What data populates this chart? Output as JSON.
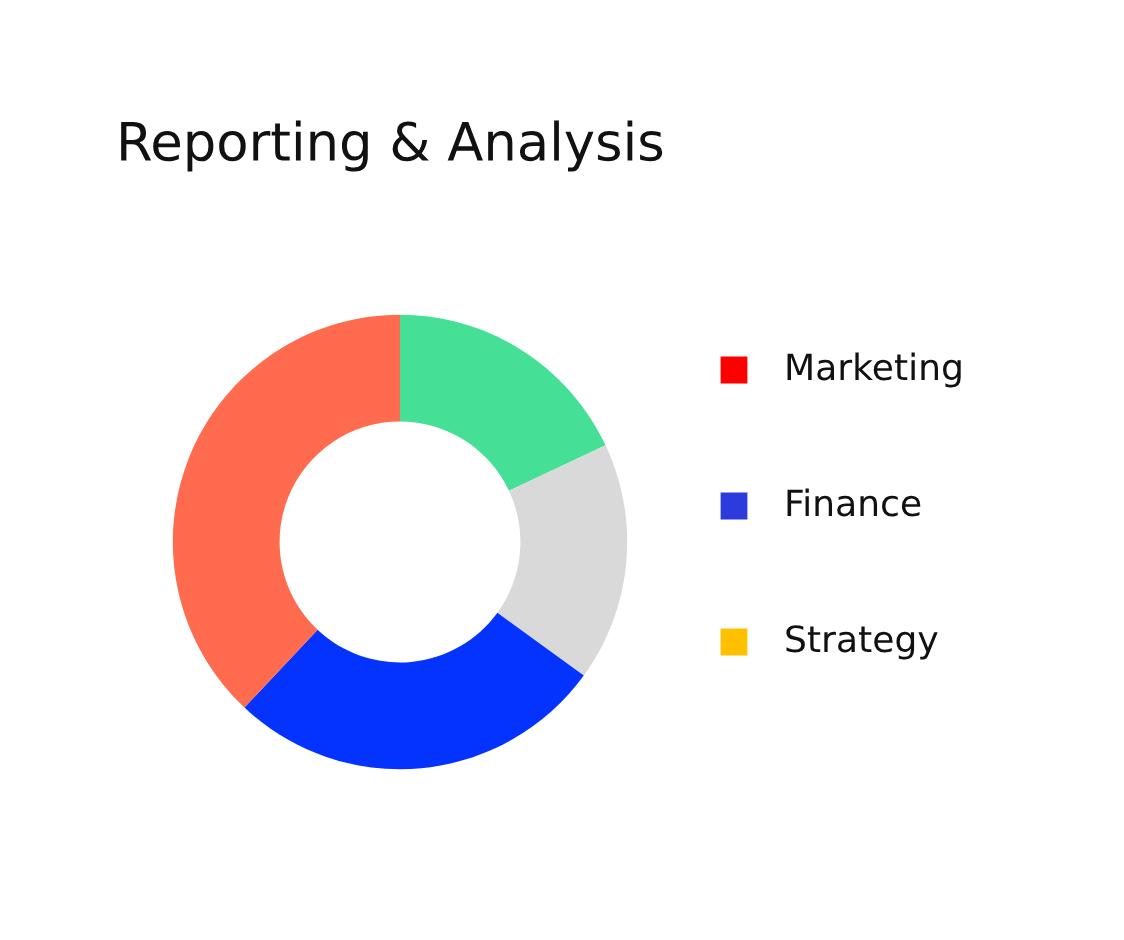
{
  "chart_data": [
    {
      "type": "donut",
      "title": "Reporting & Analysis",
      "categories": [
        null,
        null,
        null,
        null
      ],
      "values": [
        18,
        17,
        27,
        38
      ],
      "colors": [
        "#45e096",
        "#d9d9d9",
        "#0433ff",
        "#ff6b4f"
      ]
    },
    {
      "type": "other",
      "legend": "right",
      "series": [
        {
          "name": "Marketing",
          "color": "#ff0000"
        },
        {
          "name": "Finance",
          "color": "#2b3bdc"
        },
        {
          "name": "Strategy",
          "color": "#ffc000"
        }
      ]
    }
  ]
}
